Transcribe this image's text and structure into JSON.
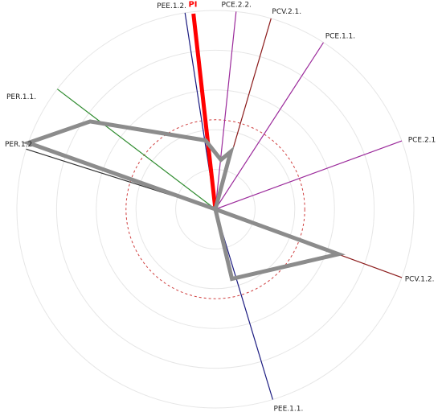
{
  "chart_data": {
    "type": "polar-vector",
    "rings": 5,
    "reference_ring": 0.45,
    "grid": true,
    "axes": [
      {
        "label": "PEE.1.2.",
        "angle": 98.8,
        "color": "#1a1a80"
      },
      {
        "label": "PI",
        "angle": 96.4,
        "color": "#ff0000",
        "highlight": true
      },
      {
        "label": "PCE.2.2.",
        "angle": 84.0,
        "color": "#9b2a9b"
      },
      {
        "label": "PCV.2.1.",
        "angle": 73.7,
        "color": "#8b1a1a"
      },
      {
        "label": "PCE.1.1.",
        "angle": 57.0,
        "color": "#9b2a9b"
      },
      {
        "label": "PCE.2.1",
        "angle": 20.1,
        "color": "#9b2a9b"
      },
      {
        "label": "PCV.1.2.",
        "angle": -20.1,
        "color": "#8b1a1a"
      },
      {
        "label": "PEE.1.1.",
        "angle": -73.2,
        "color": "#1a1a80"
      },
      {
        "label": "PER.1.2",
        "angle": 162.4,
        "color": "#333333"
      },
      {
        "label": "PER.1.1.",
        "angle": 142.8,
        "color": "#2e8b2e"
      }
    ],
    "polygon": [
      {
        "angle": 83.6,
        "r": 0.25
      },
      {
        "angle": 98.2,
        "r": 0.35
      },
      {
        "angle": 145.0,
        "r": 0.77
      },
      {
        "angle": 160.5,
        "r": 1.0
      },
      {
        "angle": 0.0,
        "r": 0.0
      },
      {
        "angle": -20.0,
        "r": 0.66
      },
      {
        "angle": -76.6,
        "r": 0.36
      },
      {
        "angle": 0.0,
        "r": 0.0
      },
      {
        "angle": 75.0,
        "r": 0.3
      }
    ]
  }
}
